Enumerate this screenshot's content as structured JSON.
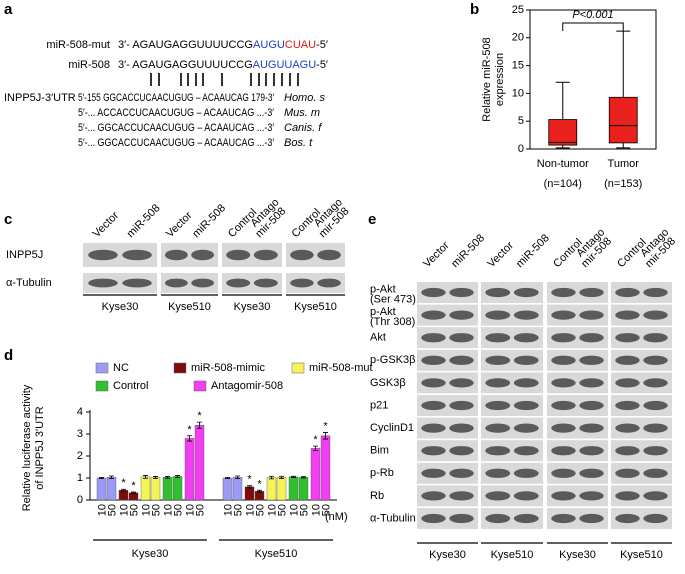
{
  "panel_a": {
    "label": "a",
    "rows": [
      {
        "name": "miR-508-mut",
        "segments": [
          {
            "text": "3′- AGAUGAGGUUUUCCG",
            "color": "#000000"
          },
          {
            "text": "AUGU",
            "color": "#1c3fc4"
          },
          {
            "text": "CUAU",
            "color": "#e3161b"
          },
          {
            "text": "-5′",
            "color": "#000000"
          }
        ]
      },
      {
        "name": "miR-508",
        "segments": [
          {
            "text": "3′- AGAUGAGGUUUUCCG",
            "color": "#000000"
          },
          {
            "text": "AUGUUAGU",
            "color": "#1c3fc4"
          },
          {
            "text": "-5′",
            "color": "#000000"
          }
        ]
      }
    ],
    "alignments": [
      {
        "name": "INPP5J-3′UTR",
        "sequence": "5′-155 GGCACCUCAACUGUG – ACAAUCAG 179-3′",
        "species": "Homo. s"
      },
      {
        "sequence": "5′-... ACCACCUCAACUGUG – ACAAUCAG ...-3′",
        "species": "Mus. m"
      },
      {
        "sequence": "5′-... GGCACCUCAACUGUG – ACAAUCAG ...-3′",
        "species": "Canis. f"
      },
      {
        "sequence": "5′-... GGCACCUCAACUGUG – ACAAUCAG ...-3′",
        "species": "Bos. t"
      }
    ]
  },
  "blot_c": {
    "label": "c",
    "columns": [
      [
        "Vector"
      ],
      [
        "miR-508"
      ],
      [
        "Vector"
      ],
      [
        "miR-508"
      ],
      [
        "Control"
      ],
      [
        "Antago",
        "mir-508"
      ],
      [
        "Control"
      ],
      [
        "Antago",
        "mir-508"
      ]
    ],
    "rows": [
      "INPP5J",
      "α-Tubulin"
    ],
    "cell_lines": [
      "Kyse30",
      "Kyse510",
      "Kyse30",
      "Kyse510"
    ]
  },
  "blot_e": {
    "label": "e",
    "columns": [
      [
        "Vector"
      ],
      [
        "miR-508"
      ],
      [
        "Vector"
      ],
      [
        "miR-508"
      ],
      [
        "Control"
      ],
      [
        "Antago",
        "mir-508"
      ],
      [
        "Control"
      ],
      [
        "Antago",
        "mir-508"
      ]
    ],
    "rows": [
      {
        "name": "p-Akt",
        "site": "(Ser 473)"
      },
      {
        "name": "p-Akt",
        "site": "(Thr 308)"
      },
      {
        "name": "Akt"
      },
      {
        "name": "p-GSK3β"
      },
      {
        "name": "GSK3β"
      },
      {
        "name": "p21"
      },
      {
        "name": "CyclinD1"
      },
      {
        "name": "Bim"
      },
      {
        "name": "p-Rb"
      },
      {
        "name": "Rb"
      },
      {
        "name": "α-Tubulin"
      }
    ],
    "cell_lines": [
      "Kyse30",
      "Kyse510",
      "Kyse30",
      "Kyse510"
    ]
  },
  "chart_data": [
    {
      "type": "box",
      "label": "b",
      "ylabel": [
        "Relative miR-508",
        "expression"
      ],
      "categories": [
        "Non-tumor",
        "Tumor"
      ],
      "sample_sizes": [
        "(n=104)",
        "(n=153)"
      ],
      "boxes": [
        {
          "min": 0.2,
          "q1": 0.7,
          "median": 1.2,
          "q3": 5.3,
          "max": 12
        },
        {
          "min": 0.2,
          "q1": 1.1,
          "median": 4.2,
          "q3": 9.3,
          "max": 21.2
        }
      ],
      "color": "#e8211c",
      "ylim": [
        0,
        25
      ],
      "yticks": [
        0,
        5,
        10,
        15,
        20,
        25
      ],
      "annotation": "P<0.001"
    },
    {
      "type": "bar",
      "label": "d",
      "ylabel": [
        "Relative luciferase activity",
        "of INPP5J 3′UTR"
      ],
      "groups": [
        "Kyse30",
        "Kyse510"
      ],
      "categories": [
        "10",
        "50",
        "10",
        "50"
      ],
      "unit": "(nM)",
      "ylim": [
        0,
        4
      ],
      "yticks": [
        0,
        1,
        2,
        3,
        4
      ],
      "series": [
        {
          "name": "NC",
          "color": "#9b9bf5",
          "values": [
            1.0,
            1.03,
            1.0,
            1.03
          ],
          "errors": [
            0.03,
            0.06,
            0.03,
            0.06
          ]
        },
        {
          "name": "miR-508-mimic",
          "color": "#7a0c0c",
          "values": [
            0.45,
            0.33,
            0.6,
            0.4
          ],
          "errors": [
            0.04,
            0.03,
            0.05,
            0.04
          ],
          "stars": [
            "*",
            "*",
            "*",
            "*"
          ]
        },
        {
          "name": "miR-508-mut",
          "color": "#f5f25a",
          "values": [
            1.05,
            1.02,
            1.02,
            1.03
          ],
          "errors": [
            0.06,
            0.05,
            0.06,
            0.05
          ]
        },
        {
          "name": "Control",
          "color": "#2fbf2f",
          "values": [
            1.03,
            1.07,
            1.05,
            1.03
          ],
          "errors": [
            0.04,
            0.04,
            0.03,
            0.03
          ]
        },
        {
          "name": "Antagomir-508",
          "color": "#f03ef0",
          "values": [
            2.8,
            3.4,
            2.35,
            2.92
          ],
          "errors": [
            0.12,
            0.14,
            0.1,
            0.15
          ],
          "stars": [
            "*",
            "*",
            "*",
            "*"
          ]
        }
      ]
    }
  ]
}
